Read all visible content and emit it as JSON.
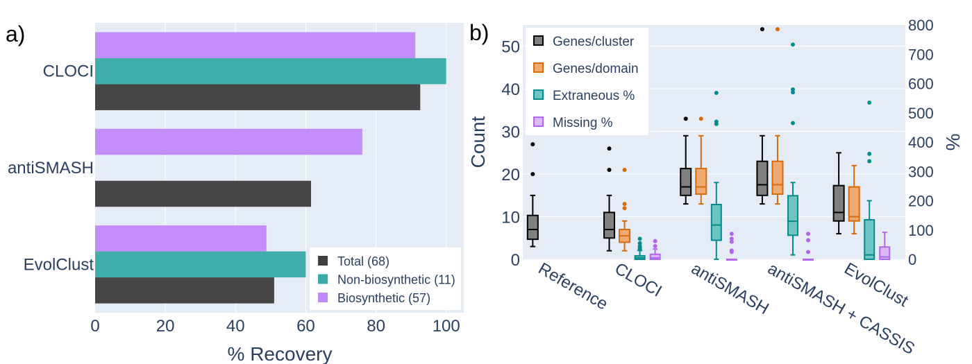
{
  "colors": {
    "plot_bg": "#e5ecf6",
    "grid": "#ffffff",
    "text": "#2a3f5f",
    "total": "#404040",
    "nonbio": "#3aaba7",
    "bio": "#c18afa",
    "genes_cluster": "#000000",
    "genes_domain": "#d96b0b",
    "extraneous": "#048c8a",
    "missing": "#b266f0"
  },
  "chart_data": [
    {
      "panel": "a)",
      "type": "bar",
      "orientation": "horizontal",
      "categories": [
        "CLOCI",
        "antiSMASH",
        "EvolClust"
      ],
      "series": [
        {
          "name": "Total (68)",
          "values": [
            92.6,
            61.5,
            51.0
          ]
        },
        {
          "name": "Non-biosynthetic (11)",
          "values": [
            100.0,
            0.0,
            60.0
          ]
        },
        {
          "name": "Biosynthetic (57)",
          "values": [
            91.2,
            76.1,
            48.8
          ]
        }
      ],
      "xlabel": "% Recovery",
      "xlim": [
        0,
        105
      ],
      "xticks": [
        "0",
        "20",
        "40",
        "60",
        "80",
        "100"
      ],
      "legend_position": "bottom-right",
      "grid": true
    },
    {
      "panel": "b)",
      "type": "box",
      "categories": [
        "Reference",
        "CLOCI",
        "antiSMASH",
        "antiSMASH + CASSIS",
        "EvolClust"
      ],
      "ylabel": "Count",
      "ylim": [
        0,
        55
      ],
      "yticks": [
        "0",
        "10",
        "20",
        "30",
        "40",
        "50"
      ],
      "y2label": "%",
      "y2lim": [
        0,
        800
      ],
      "y2ticks": [
        "0",
        "100",
        "200",
        "300",
        "400",
        "500",
        "600",
        "700",
        "800"
      ],
      "legend_position": "top-left",
      "grid": true,
      "series": [
        {
          "name": "Genes/cluster",
          "axis": "left",
          "boxes": [
            {
              "category": "Reference",
              "min": 3,
              "q1": 4.7,
              "median": 7,
              "q3": 10.3,
              "max": 15,
              "outliers": [
                20,
                27
              ]
            },
            {
              "category": "CLOCI",
              "min": 2,
              "q1": 5,
              "median": 7,
              "q3": 11,
              "max": 15,
              "outliers": [
                21,
                26
              ]
            },
            {
              "category": "antiSMASH",
              "min": 13,
              "q1": 15,
              "median": 17,
              "q3": 21.3,
              "max": 29,
              "outliers": [
                33
              ]
            },
            {
              "category": "antiSMASH + CASSIS",
              "min": 13,
              "q1": 15,
              "median": 17.5,
              "q3": 23,
              "max": 29,
              "outliers": [
                54
              ]
            },
            {
              "category": "EvolClust",
              "min": 6,
              "q1": 9,
              "median": 11,
              "q3": 17.3,
              "max": 25,
              "outliers": []
            }
          ]
        },
        {
          "name": "Genes/domain",
          "axis": "left",
          "boxes": [
            {
              "category": "CLOCI",
              "min": 2,
              "q1": 4,
              "median": 5.5,
              "q3": 7,
              "max": 9,
              "outliers": [
                12,
                13,
                21
              ]
            },
            {
              "category": "antiSMASH",
              "min": 13,
              "q1": 15.3,
              "median": 17,
              "q3": 21.3,
              "max": 29,
              "outliers": [
                33
              ]
            },
            {
              "category": "antiSMASH + CASSIS",
              "min": 13,
              "q1": 15.3,
              "median": 17.5,
              "q3": 23,
              "max": 29,
              "outliers": [
                54
              ]
            },
            {
              "category": "EvolClust",
              "min": 6,
              "q1": 9,
              "median": 10,
              "q3": 17,
              "max": 22,
              "outliers": []
            }
          ]
        },
        {
          "name": "Extraneous %",
          "axis": "right",
          "boxes": [
            {
              "category": "CLOCI",
              "min": 0,
              "q1": 0,
              "median": 5,
              "q3": 12,
              "max": 30,
              "outliers": [
                35,
                40,
                45,
                55,
                70
              ]
            },
            {
              "category": "antiSMASH",
              "min": 0,
              "q1": 65,
              "median": 117,
              "q3": 187,
              "max": 262,
              "outliers": [
                462,
                470,
                568
              ]
            },
            {
              "category": "antiSMASH + CASSIS",
              "min": 15,
              "q1": 82,
              "median": 130,
              "q3": 217,
              "max": 262,
              "outliers": [
                465,
                570,
                580,
                733
              ]
            },
            {
              "category": "EvolClust",
              "min": 0,
              "q1": 0,
              "median": 15,
              "q3": 135,
              "max": 200,
              "outliers": [
                335,
                360,
                535
              ]
            }
          ]
        },
        {
          "name": "Missing %",
          "axis": "right",
          "boxes": [
            {
              "category": "CLOCI",
              "min": 0,
              "q1": 0,
              "median": 5,
              "q3": 17,
              "max": 35,
              "outliers": [
                45,
                62
              ]
            },
            {
              "category": "antiSMASH",
              "min": 0,
              "q1": 0,
              "median": 0,
              "q3": 0,
              "max": 0,
              "outliers": [
                25,
                30,
                60,
                70,
                87
              ]
            },
            {
              "category": "antiSMASH + CASSIS",
              "min": 0,
              "q1": 0,
              "median": 0,
              "q3": 0,
              "max": 0,
              "outliers": [
                25,
                65,
                87
              ]
            },
            {
              "category": "EvolClust",
              "min": 0,
              "q1": 0,
              "median": 8,
              "q3": 42,
              "max": 92,
              "outliers": []
            }
          ]
        }
      ]
    }
  ]
}
